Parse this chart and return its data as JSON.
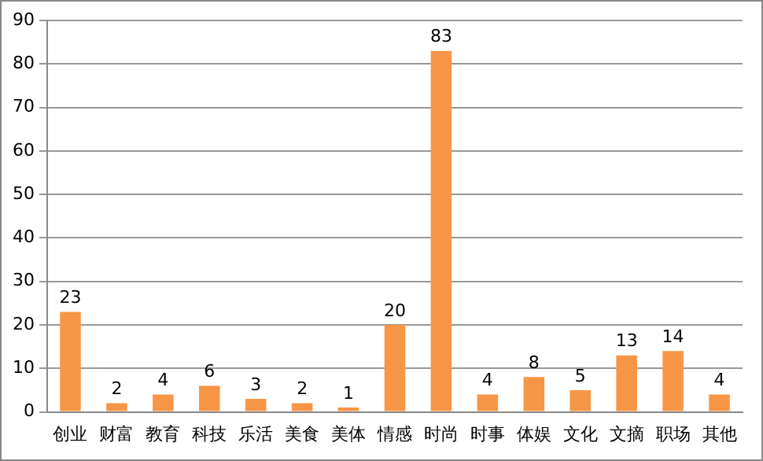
{
  "chart_data": {
    "type": "bar",
    "categories": [
      "创业",
      "财富",
      "教育",
      "科技",
      "乐活",
      "美食",
      "美体",
      "情感",
      "时尚",
      "时事",
      "体娱",
      "文化",
      "文摘",
      "职场",
      "其他"
    ],
    "values": [
      23,
      2,
      4,
      6,
      3,
      2,
      1,
      20,
      83,
      4,
      8,
      5,
      13,
      14,
      4
    ],
    "color": "#f79646",
    "ylim": [
      0,
      90
    ],
    "yticks": [
      0,
      10,
      20,
      30,
      40,
      50,
      60,
      70,
      80,
      90
    ],
    "grid": "y",
    "data_labels": true
  }
}
